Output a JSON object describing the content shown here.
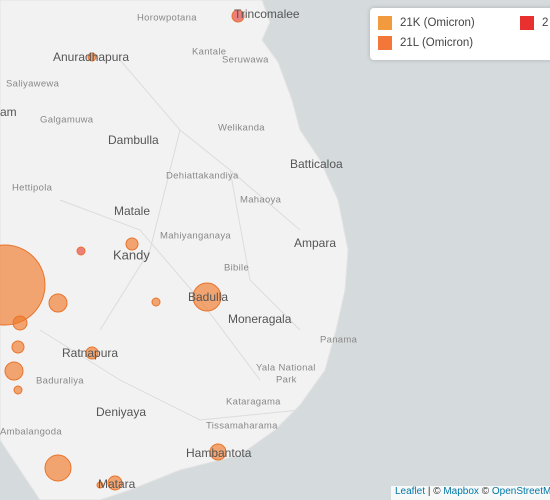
{
  "map": {
    "labels": [
      "Trincomalee",
      "Horowpotana",
      "Kantale",
      "Seruwawa",
      "Anuradhapura",
      "Saliyawewa",
      "am",
      "Galgamuwa",
      "Welikanda",
      "Dambulla",
      "Batticaloa",
      "Dehiattakandiya",
      "Hettipola",
      "Mahaoya",
      "Matale",
      "Mahiyanganaya",
      "Ampara",
      "Kandy",
      "Bibile",
      "Badulla",
      "Moneragala",
      "Panama",
      "Ratnapura",
      "Yala National",
      "Park",
      "Baduraliya",
      "Deniyaya",
      "Kataragama",
      "Ambalangoda",
      "Tissamaharama",
      "Hambantota",
      "Matara"
    ]
  },
  "legend": {
    "items": [
      "21K (Omicron)",
      "21L (Omicron)",
      "2"
    ]
  },
  "attribution": {
    "leaflet": "Leaflet",
    "sep": "| ©",
    "mapbox": "Mapbox",
    "copy": "©",
    "osm": "OpenStreetM"
  }
}
